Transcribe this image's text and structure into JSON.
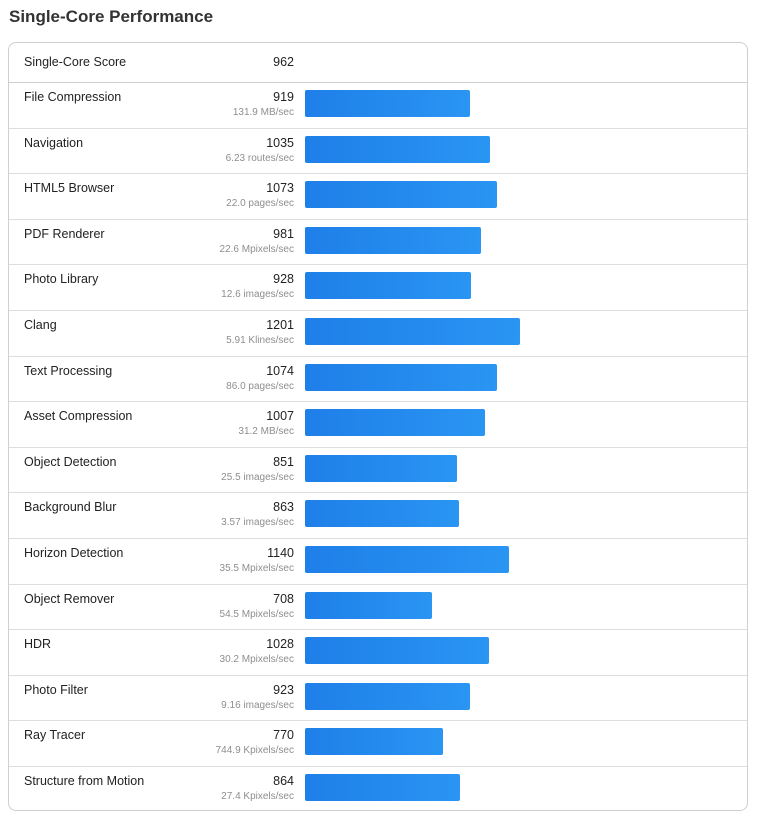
{
  "title": "Single-Core Performance",
  "summary": {
    "label": "Single-Core Score",
    "score": "962"
  },
  "max_score": 1201,
  "bar_color": "#1e88ea",
  "rows": [
    {
      "name": "File Compression",
      "score": "919",
      "rate": "131.9 MB/sec"
    },
    {
      "name": "Navigation",
      "score": "1035",
      "rate": "6.23 routes/sec"
    },
    {
      "name": "HTML5 Browser",
      "score": "1073",
      "rate": "22.0 pages/sec"
    },
    {
      "name": "PDF Renderer",
      "score": "981",
      "rate": "22.6 Mpixels/sec"
    },
    {
      "name": "Photo Library",
      "score": "928",
      "rate": "12.6 images/sec"
    },
    {
      "name": "Clang",
      "score": "1201",
      "rate": "5.91 Klines/sec"
    },
    {
      "name": "Text Processing",
      "score": "1074",
      "rate": "86.0 pages/sec"
    },
    {
      "name": "Asset Compression",
      "score": "1007",
      "rate": "31.2 MB/sec"
    },
    {
      "name": "Object Detection",
      "score": "851",
      "rate": "25.5 images/sec"
    },
    {
      "name": "Background Blur",
      "score": "863",
      "rate": "3.57 images/sec"
    },
    {
      "name": "Horizon Detection",
      "score": "1140",
      "rate": "35.5 Mpixels/sec"
    },
    {
      "name": "Object Remover",
      "score": "708",
      "rate": "54.5 Mpixels/sec"
    },
    {
      "name": "HDR",
      "score": "1028",
      "rate": "30.2 Mpixels/sec"
    },
    {
      "name": "Photo Filter",
      "score": "923",
      "rate": "9.16 images/sec"
    },
    {
      "name": "Ray Tracer",
      "score": "770",
      "rate": "744.9 Kpixels/sec"
    },
    {
      "name": "Structure from Motion",
      "score": "864",
      "rate": "27.4 Kpixels/sec"
    }
  ]
}
